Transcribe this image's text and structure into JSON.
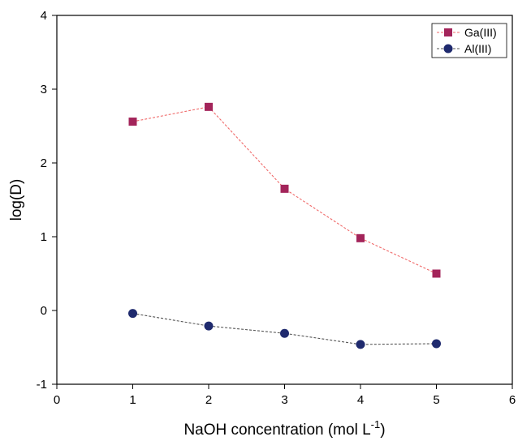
{
  "chart_data": {
    "type": "line",
    "xlabel": "NaOH concentration (mol L",
    "xlabel_sup": "-1",
    "xlabel_end": ")",
    "ylabel": "log(D)",
    "xlim": [
      0,
      6
    ],
    "ylim": [
      -1,
      4
    ],
    "x_ticks": [
      "0",
      "1",
      "2",
      "3",
      "4",
      "5",
      "6"
    ],
    "y_ticks": [
      "-1",
      "0",
      "1",
      "2",
      "3",
      "4"
    ],
    "grid": false,
    "legend_position": "top-right",
    "x": [
      1,
      2,
      3,
      4,
      5
    ],
    "series": [
      {
        "name": "Ga(III)",
        "values": [
          2.56,
          2.76,
          1.65,
          0.98,
          0.5
        ],
        "marker": "square",
        "color": "#a3245a",
        "line_color": "#f06a6a"
      },
      {
        "name": "Al(III)",
        "values": [
          -0.04,
          -0.21,
          -0.31,
          -0.46,
          -0.45
        ],
        "marker": "circle",
        "color": "#1f2a6e",
        "line_color": "#555555"
      }
    ]
  }
}
